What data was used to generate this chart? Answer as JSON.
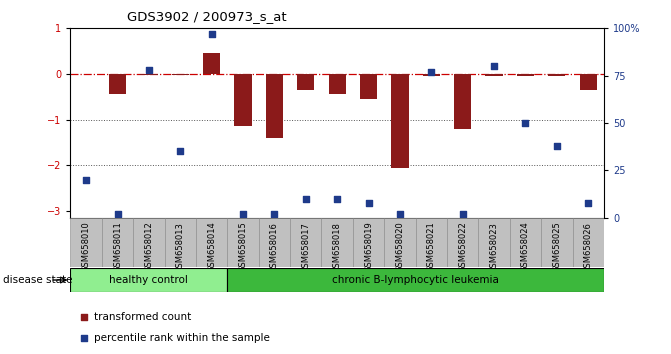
{
  "title": "GDS3902 / 200973_s_at",
  "samples": [
    "GSM658010",
    "GSM658011",
    "GSM658012",
    "GSM658013",
    "GSM658014",
    "GSM658015",
    "GSM658016",
    "GSM658017",
    "GSM658018",
    "GSM658019",
    "GSM658020",
    "GSM658021",
    "GSM658022",
    "GSM658023",
    "GSM658024",
    "GSM658025",
    "GSM658026"
  ],
  "red_bars": [
    0.0,
    -0.45,
    -0.02,
    -0.02,
    0.45,
    -1.15,
    -1.4,
    -0.35,
    -0.45,
    -0.55,
    -2.05,
    -0.05,
    -1.2,
    -0.05,
    -0.05,
    -0.05,
    -0.35
  ],
  "blue_pct": [
    20,
    2,
    78,
    35,
    97,
    2,
    2,
    10,
    10,
    8,
    2,
    77,
    2,
    80,
    50,
    38,
    8
  ],
  "ylim_left": [
    -3.15,
    1.0
  ],
  "ylim_right": [
    0,
    100
  ],
  "yticks_left": [
    -3,
    -2,
    -1,
    0,
    1
  ],
  "yticks_right": [
    0,
    25,
    50,
    75,
    100
  ],
  "ytick_labels_right": [
    "0",
    "25",
    "50",
    "75",
    "100%"
  ],
  "group1_label": "healthy control",
  "group2_label": "chronic B-lymphocytic leukemia",
  "group1_count": 5,
  "legend_red": "transformed count",
  "legend_blue": "percentile rank within the sample",
  "disease_state_label": "disease state",
  "bar_color": "#8B1A1A",
  "blue_color": "#1E3A8A",
  "group1_color": "#90EE90",
  "group2_color": "#3CB83C",
  "zero_line_color": "#CC0000",
  "dotted_line_color": "#555555",
  "background_color": "#FFFFFF",
  "label_bg_color": "#C0C0C0"
}
